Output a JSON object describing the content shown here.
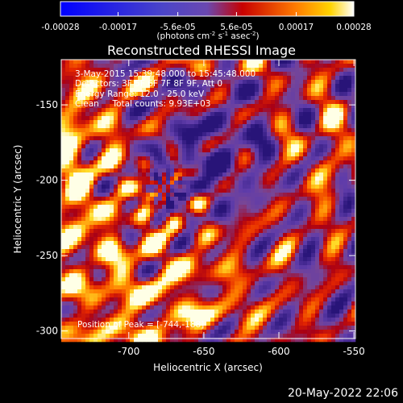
{
  "chart_data": {
    "type": "heatmap",
    "title": "Reconstructed RHESSI Image",
    "xlabel": "Heliocentric X (arcsec)",
    "ylabel": "Heliocentric Y (arcsec)",
    "xlim": [
      -745,
      -549
    ],
    "ylim": [
      -305,
      -120
    ],
    "xticks": [
      "-700",
      "-650",
      "-600",
      "-550"
    ],
    "yticks": [
      "-150",
      "-200",
      "-250",
      "-300"
    ],
    "colorbar": {
      "range": [
        -0.00028,
        0.00028
      ],
      "ticks": [
        "-0.00028",
        "-0.00017",
        "-5.6e-05",
        "5.6e-05",
        "0.00017",
        "0.00028"
      ],
      "unit_main": "(photons cm",
      "unit_sup1": "-2",
      "unit_s": " s",
      "unit_sup2": "-1",
      "unit_asec": " asec",
      "unit_sup3": "-2",
      "unit_close": ")"
    },
    "peak_position": [
      -744,
      -188
    ],
    "annotations": {
      "time_range": "3-May-2015 15:39:48.000 to 15:45:48.000",
      "detectors": "Detectors: 3F 5F 6F 7F 8F 9F, Att 0",
      "energy": "Energy Range: 12.0 - 25.0 keV",
      "clean": "Clean     Total counts: 9.93E+03",
      "peak": "Position of Peak = [-744,-188]"
    },
    "colors": {
      "low": "#0000ff",
      "mid": "#6a48b0",
      "high": "#ffffff"
    }
  },
  "footer_date": "20-May-2022 22:06"
}
